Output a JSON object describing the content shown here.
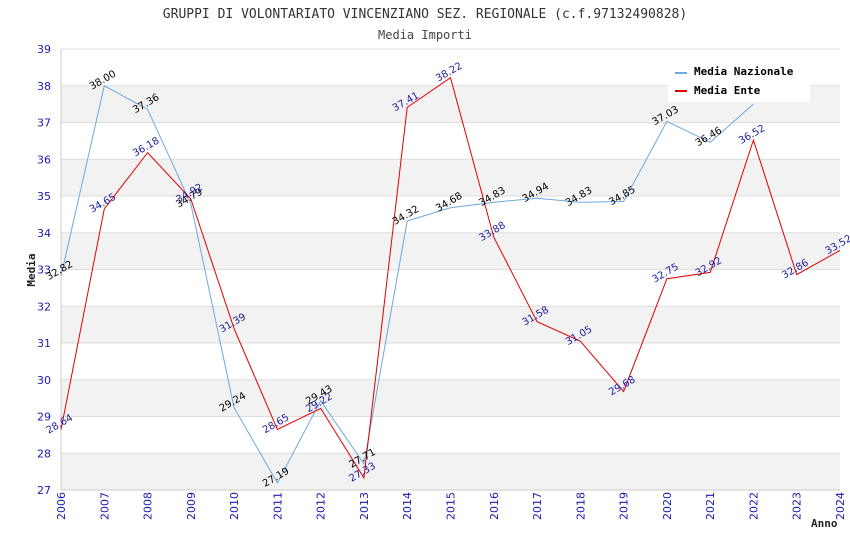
{
  "chart_data": {
    "type": "line",
    "title": "GRUPPI DI VOLONTARIATO VINCENZIANO SEZ. REGIONALE (c.f.97132490828)",
    "subtitle": "Media Importi",
    "xlabel": "Anno",
    "ylabel": "Media",
    "ylim": [
      27,
      39
    ],
    "yticks": [
      "27",
      "28",
      "29",
      "30",
      "31",
      "32",
      "33",
      "34",
      "35",
      "36",
      "37",
      "38",
      "39"
    ],
    "x": [
      "2006",
      "2007",
      "2008",
      "2009",
      "2010",
      "2011",
      "2012",
      "2013",
      "2014",
      "2015",
      "2016",
      "2017",
      "2018",
      "2019",
      "2020",
      "2021",
      "2022",
      "2023",
      "2024"
    ],
    "legend_position": "top-right",
    "grid": "horizontal-bands",
    "series": [
      {
        "name": "Media Nazionale",
        "color": "#6fa8dc",
        "values": [
          32.82,
          38.0,
          37.36,
          34.79,
          29.24,
          27.19,
          29.43,
          27.71,
          34.32,
          34.68,
          34.83,
          34.94,
          34.83,
          34.85,
          37.03,
          36.46,
          37.5,
          null,
          null
        ],
        "labels": [
          "32.82",
          "38.00",
          "37.36",
          "34.79",
          "29.24",
          "27.19",
          "29.43",
          "27.71",
          "34.32",
          "34.68",
          "34.83",
          "34.94",
          "34.83",
          "34.85",
          "37.03",
          "36.46",
          "",
          "",
          ""
        ]
      },
      {
        "name": "Media Ente",
        "color": "#e00000",
        "values": [
          28.64,
          34.65,
          36.18,
          34.92,
          31.39,
          28.65,
          29.22,
          27.33,
          37.41,
          38.22,
          33.88,
          31.58,
          31.05,
          29.68,
          32.75,
          32.92,
          36.52,
          32.86,
          33.52
        ],
        "labels": [
          "28.64",
          "34.65",
          "36.18",
          "34.92",
          "31.39",
          "28.65",
          "29.22",
          "27.33",
          "37.41",
          "38.22",
          "33.88",
          "31.58",
          "31.05",
          "29.68",
          "32.75",
          "32.92",
          "36.52",
          "32.86",
          "33.52"
        ]
      }
    ]
  }
}
